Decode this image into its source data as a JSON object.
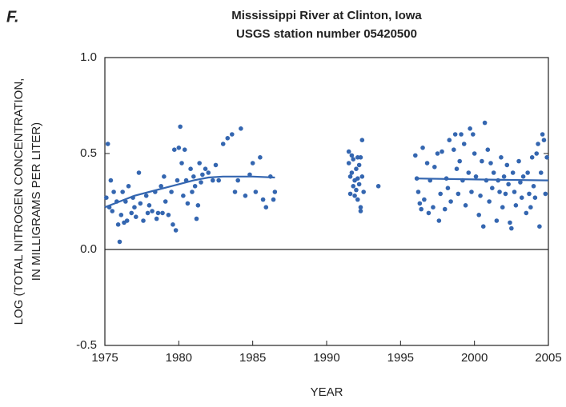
{
  "chart_data": {
    "type": "scatter",
    "panel_label": "F.",
    "title": "Mississippi River at Clinton, Iowa",
    "subtitle": "USGS station number 05420500",
    "xlabel": "YEAR",
    "ylabel": [
      "LOG (TOTAL NITROGEN CONCENTRATION,",
      "IN MILLIGRAMS PER LITER)"
    ],
    "xlim": [
      1975,
      2005
    ],
    "xticks": [
      1975,
      1980,
      1985,
      1990,
      1995,
      2000,
      2005
    ],
    "ylim": [
      -0.5,
      1.0
    ],
    "yticks": [
      {
        "value": 1.0,
        "label": "1.0"
      },
      {
        "value": 0.5,
        "label": "0.5"
      },
      {
        "value": 0,
        "label": "0.0"
      },
      {
        "value": -0.5,
        "label": "-0.5"
      }
    ],
    "zero_line": true,
    "series": [
      {
        "mode": "markers",
        "color": "#3466b0",
        "x": [
          1975.1,
          1975.2,
          1975.3,
          1975.4,
          1975.5,
          1975.6,
          1975.8,
          1975.9,
          1976.0,
          1976.1,
          1976.2,
          1976.3,
          1976.4,
          1976.5,
          1976.6,
          1976.8,
          1976.9,
          1977.0,
          1977.1,
          1977.3,
          1977.4,
          1977.6,
          1977.8,
          1977.9,
          1978.0,
          1978.2,
          1978.4,
          1978.5,
          1978.6,
          1978.8,
          1978.9,
          1979.0,
          1979.1,
          1979.3,
          1979.5,
          1979.6,
          1979.7,
          1979.8,
          1979.9,
          1980.0,
          1980.1,
          1980.2,
          1980.3,
          1980.4,
          1980.5,
          1980.6,
          1980.8,
          1980.9,
          1981.0,
          1981.1,
          1981.2,
          1981.3,
          1981.4,
          1981.5,
          1981.6,
          1981.8,
          1982.0,
          1982.3,
          1982.5,
          1982.7,
          1983.0,
          1983.3,
          1983.6,
          1983.8,
          1984.0,
          1984.2,
          1984.5,
          1984.8,
          1985.0,
          1985.2,
          1985.5,
          1985.7,
          1985.9,
          1986.2,
          1986.4,
          1986.5,
          1991.5,
          1991.5,
          1991.6,
          1991.6,
          1991.7,
          1991.7,
          1991.8,
          1991.8,
          1991.9,
          1991.9,
          1992.0,
          1992.0,
          1992.1,
          1992.1,
          1992.1,
          1992.2,
          1992.2,
          1992.3,
          1992.3,
          1992.3,
          1992.4,
          1992.4,
          1992.5,
          1993.5,
          1996.0,
          1996.1,
          1996.2,
          1996.3,
          1996.4,
          1996.5,
          1996.6,
          1996.8,
          1996.9,
          1997.0,
          1997.2,
          1997.3,
          1997.5,
          1997.6,
          1997.7,
          1997.8,
          1998.0,
          1998.1,
          1998.2,
          1998.3,
          1998.4,
          1998.6,
          1998.7,
          1998.8,
          1998.9,
          1999.0,
          1999.1,
          1999.2,
          1999.3,
          1999.4,
          1999.6,
          1999.7,
          1999.8,
          1999.9,
          2000.0,
          2000.1,
          2000.3,
          2000.4,
          2000.5,
          2000.6,
          2000.7,
          2000.8,
          2000.9,
          2001.0,
          2001.1,
          2001.2,
          2001.3,
          2001.5,
          2001.6,
          2001.7,
          2001.8,
          2001.9,
          2002.0,
          2002.1,
          2002.2,
          2002.3,
          2002.4,
          2002.5,
          2002.6,
          2002.7,
          2002.8,
          2003.0,
          2003.1,
          2003.2,
          2003.3,
          2003.5,
          2003.6,
          2003.7,
          2003.8,
          2003.9,
          2004.0,
          2004.1,
          2004.2,
          2004.3,
          2004.4,
          2004.5,
          2004.6,
          2004.7,
          2004.8,
          2004.9
        ],
        "values": [
          0.27,
          0.55,
          0.22,
          0.36,
          0.2,
          0.3,
          0.25,
          0.13,
          0.04,
          0.18,
          0.3,
          0.14,
          0.25,
          0.15,
          0.33,
          0.19,
          0.27,
          0.22,
          0.17,
          0.4,
          0.24,
          0.15,
          0.28,
          0.19,
          0.23,
          0.2,
          0.3,
          0.16,
          0.19,
          0.33,
          0.19,
          0.38,
          0.25,
          0.18,
          0.3,
          0.13,
          0.52,
          0.1,
          0.36,
          0.53,
          0.64,
          0.45,
          0.28,
          0.52,
          0.36,
          0.24,
          0.42,
          0.3,
          0.38,
          0.33,
          0.16,
          0.23,
          0.45,
          0.35,
          0.39,
          0.42,
          0.4,
          0.36,
          0.44,
          0.36,
          0.55,
          0.58,
          0.6,
          0.3,
          0.36,
          0.63,
          0.28,
          0.39,
          0.45,
          0.3,
          0.48,
          0.26,
          0.22,
          0.38,
          0.26,
          0.3,
          0.51,
          0.45,
          0.38,
          0.29,
          0.49,
          0.4,
          0.33,
          0.47,
          0.36,
          0.28,
          0.42,
          0.31,
          0.48,
          0.37,
          0.26,
          0.44,
          0.34,
          0.22,
          0.2,
          0.48,
          0.57,
          0.38,
          0.3,
          0.33,
          0.49,
          0.37,
          0.3,
          0.24,
          0.21,
          0.53,
          0.26,
          0.45,
          0.19,
          0.36,
          0.22,
          0.43,
          0.5,
          0.15,
          0.29,
          0.51,
          0.21,
          0.37,
          0.32,
          0.57,
          0.25,
          0.52,
          0.6,
          0.42,
          0.29,
          0.46,
          0.6,
          0.36,
          0.55,
          0.23,
          0.4,
          0.63,
          0.3,
          0.6,
          0.5,
          0.38,
          0.18,
          0.28,
          0.46,
          0.12,
          0.66,
          0.36,
          0.52,
          0.25,
          0.45,
          0.32,
          0.4,
          0.15,
          0.36,
          0.3,
          0.48,
          0.22,
          0.38,
          0.29,
          0.44,
          0.34,
          0.14,
          0.11,
          0.4,
          0.3,
          0.23,
          0.46,
          0.35,
          0.27,
          0.38,
          0.19,
          0.4,
          0.29,
          0.22,
          0.48,
          0.33,
          0.27,
          0.5,
          0.55,
          0.12,
          0.4,
          0.6,
          0.57,
          0.29,
          0.48
        ]
      },
      {
        "mode": "line",
        "color": "#3466b0",
        "x": [
          1975,
          1976,
          1977,
          1978,
          1979,
          1980,
          1981,
          1982,
          1983,
          1984,
          1985,
          1986.5,
          1991,
          1996,
          2000,
          2005
        ],
        "values": [
          0.22,
          0.25,
          0.28,
          0.3,
          0.32,
          0.34,
          0.36,
          0.375,
          0.38,
          0.38,
          0.38,
          0.375,
          null,
          0.37,
          0.365,
          0.36
        ]
      }
    ]
  }
}
